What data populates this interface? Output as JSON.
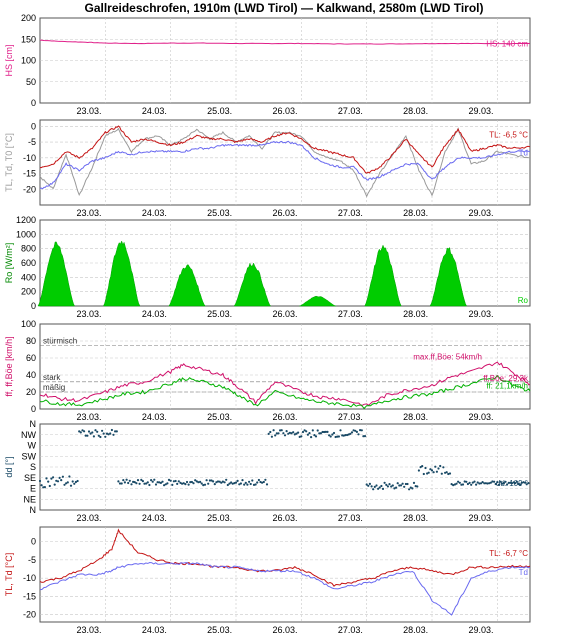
{
  "title": "Gallreideschrofen, 1910m (LWD Tirol) — Kalkwand, 2580m (LWD Tirol)",
  "x_ticks": [
    "23.03.",
    "24.03.",
    "25.03.",
    "26.03.",
    "27.03.",
    "28.03.",
    "29.03."
  ],
  "colors": {
    "hs": "#e0208a",
    "tl": "#c41414",
    "td": "#6a6af0",
    "t0": "#9a9a9a",
    "ro": "#00cc00",
    "ff": "#00b000",
    "fboe": "#d0106a",
    "dd": "#1a4a66",
    "grid": "#c8c8c8",
    "panel_bg": "#ffffff"
  },
  "chart_data": [
    {
      "id": "hs",
      "type": "line",
      "ylabel": "HS [cm]",
      "ylim": [
        0,
        200
      ],
      "y_ticks": [
        0,
        50,
        100,
        150,
        200
      ],
      "series": [
        {
          "name": "HS",
          "color_key": "hs",
          "x": [
            0,
            0.3,
            0.7,
            1,
            1.5,
            2,
            2.5,
            3,
            3.5,
            4,
            4.5,
            5,
            5.5,
            6,
            6.5,
            7,
            7.5
          ],
          "y": [
            148,
            145,
            143,
            141,
            140,
            141,
            141,
            140,
            140,
            140,
            139,
            139,
            139,
            140,
            140,
            140,
            140
          ]
        }
      ],
      "annotations": [
        {
          "text": "HS: 140 cm",
          "color_key": "hs"
        }
      ]
    },
    {
      "id": "temp1910",
      "type": "line",
      "ylabel": "TL, Td, T0 [°C]",
      "ylim": [
        -25,
        2
      ],
      "y_ticks": [
        0,
        -5,
        -10,
        -15,
        -20
      ],
      "series": [
        {
          "name": "T0",
          "color_key": "t0",
          "x": [
            0,
            0.2,
            0.4,
            0.6,
            0.8,
            1,
            1.2,
            1.4,
            1.6,
            1.8,
            2,
            2.2,
            2.4,
            2.6,
            2.8,
            3,
            3.2,
            3.4,
            3.6,
            3.8,
            4,
            4.2,
            4.4,
            4.6,
            4.8,
            5,
            5.2,
            5.4,
            5.6,
            5.8,
            6,
            6.2,
            6.4,
            6.6,
            6.8,
            7,
            7.2,
            7.5
          ],
          "y": [
            -16,
            -20,
            -9,
            -22,
            -13,
            -3,
            -1,
            -8,
            -4,
            -3,
            -6,
            -4,
            -1,
            -4,
            -2,
            -5,
            -3,
            -7,
            -2,
            -2,
            -3,
            -8,
            -10,
            -11,
            -14,
            -22,
            -15,
            -9,
            -3,
            -14,
            -22,
            -8,
            -1,
            -12,
            -11,
            -8,
            -9,
            -10
          ]
        },
        {
          "name": "TL",
          "color_key": "tl",
          "x": [
            0,
            0.2,
            0.4,
            0.6,
            0.8,
            1,
            1.2,
            1.4,
            1.6,
            1.8,
            2,
            2.2,
            2.4,
            2.6,
            2.8,
            3,
            3.2,
            3.4,
            3.6,
            3.8,
            4,
            4.2,
            4.4,
            4.6,
            4.8,
            5,
            5.2,
            5.4,
            5.6,
            5.8,
            6,
            6.2,
            6.4,
            6.6,
            6.8,
            7,
            7.2,
            7.5
          ],
          "y": [
            -13,
            -12,
            -8,
            -10,
            -7,
            -2,
            0,
            -5,
            -4,
            -5,
            -6,
            -5,
            -3,
            -4,
            -4,
            -5,
            -4,
            -5,
            -3,
            -2,
            -4,
            -7,
            -8,
            -9,
            -10,
            -15,
            -13,
            -9,
            -4,
            -9,
            -13,
            -6,
            -1,
            -8,
            -7,
            -6,
            -7,
            -6.5
          ]
        },
        {
          "name": "Td",
          "color_key": "td",
          "x": [
            0,
            0.2,
            0.4,
            0.6,
            0.8,
            1,
            1.2,
            1.4,
            1.6,
            1.8,
            2,
            2.2,
            2.4,
            2.6,
            2.8,
            3,
            3.2,
            3.4,
            3.6,
            3.8,
            4,
            4.2,
            4.4,
            4.6,
            4.8,
            5,
            5.2,
            5.4,
            5.6,
            5.8,
            6,
            6.2,
            6.4,
            6.6,
            6.8,
            7,
            7.2,
            7.5
          ],
          "y": [
            -20,
            -18,
            -12,
            -14,
            -11,
            -10,
            -8,
            -9,
            -8,
            -8,
            -8,
            -8,
            -7,
            -7,
            -6,
            -6,
            -6,
            -6,
            -5,
            -5,
            -6,
            -10,
            -12,
            -13,
            -13,
            -17,
            -16,
            -14,
            -12,
            -12,
            -17,
            -13,
            -10,
            -10,
            -10,
            -9,
            -8,
            -8
          ]
        }
      ],
      "annotations": [
        {
          "text": "TL: -6,5 °C",
          "color_key": "tl"
        },
        {
          "text": "Td",
          "color_key": "td"
        }
      ]
    },
    {
      "id": "ro",
      "type": "area",
      "ylabel": "Ro [W/m²]",
      "ylim": [
        0,
        1200
      ],
      "y_ticks": [
        0,
        200,
        400,
        600,
        800,
        1000,
        1200
      ],
      "peaks": [
        {
          "day": 0.25,
          "value": 900
        },
        {
          "day": 1.25,
          "value": 950
        },
        {
          "day": 2.25,
          "value": 590
        },
        {
          "day": 3.25,
          "value": 620
        },
        {
          "day": 4.25,
          "value": 140
        },
        {
          "day": 5.25,
          "value": 870
        },
        {
          "day": 6.25,
          "value": 830
        }
      ],
      "annotations": [
        {
          "text": "Ro",
          "color_key": "ro"
        }
      ]
    },
    {
      "id": "wind",
      "type": "line",
      "ylabel": "ff, ff,Böe [km/h]",
      "ylim": [
        0,
        100
      ],
      "y_ticks": [
        0,
        20,
        40,
        60,
        80,
        100
      ],
      "levels": [
        {
          "text": "stürmisch",
          "value": 75
        },
        {
          "text": "stark",
          "value": 32
        },
        {
          "text": "mäßig",
          "value": 20
        }
      ],
      "series": [
        {
          "name": "ff,Böe",
          "color_key": "fboe",
          "x": [
            0,
            0.3,
            0.6,
            1,
            1.3,
            1.6,
            2,
            2.2,
            2.5,
            2.8,
            3,
            3.3,
            3.6,
            4,
            4.3,
            4.6,
            5,
            5.3,
            5.6,
            6,
            6.3,
            6.6,
            7,
            7.3,
            7.5
          ],
          "y": [
            18,
            12,
            10,
            20,
            28,
            32,
            44,
            52,
            46,
            40,
            28,
            8,
            32,
            20,
            14,
            12,
            4,
            16,
            22,
            28,
            38,
            44,
            55,
            40,
            29
          ]
        },
        {
          "name": "ff",
          "color_key": "ff",
          "x": [
            0,
            0.3,
            0.6,
            1,
            1.3,
            1.6,
            2,
            2.2,
            2.5,
            2.8,
            3,
            3.3,
            3.6,
            4,
            4.3,
            4.6,
            5,
            5.3,
            5.6,
            6,
            6.3,
            6.6,
            7,
            7.3,
            7.5
          ],
          "y": [
            10,
            6,
            5,
            12,
            18,
            20,
            30,
            36,
            32,
            26,
            18,
            4,
            20,
            12,
            8,
            6,
            2,
            10,
            14,
            18,
            24,
            30,
            38,
            26,
            21
          ]
        }
      ],
      "annotations": [
        {
          "text": "max.ff,Böe: 54km/h",
          "color_key": "fboe"
        },
        {
          "text": "ff,Böe: 29,3k",
          "color_key": "fboe"
        },
        {
          "text": "ff: 21,1km/h",
          "color_key": "ff"
        }
      ]
    },
    {
      "id": "dir",
      "type": "scatter",
      "ylabel": "dd [°]",
      "ylim": [
        0,
        360
      ],
      "y_ticks": [
        {
          "label": "N",
          "value": 360
        },
        {
          "label": "NW",
          "value": 315
        },
        {
          "label": "W",
          "value": 270
        },
        {
          "label": "SW",
          "value": 225
        },
        {
          "label": "S",
          "value": 180
        },
        {
          "label": "SE",
          "value": 135
        },
        {
          "label": "E",
          "value": 90
        },
        {
          "label": "NE",
          "value": 45
        },
        {
          "label": "N",
          "value": 0
        }
      ],
      "segments": [
        {
          "x0": 0,
          "x1": 0.6,
          "y": 120,
          "spread": 25
        },
        {
          "x0": 0.6,
          "x1": 1.2,
          "y": 320,
          "spread": 15
        },
        {
          "x0": 1.2,
          "x1": 3.5,
          "y": 115,
          "spread": 12
        },
        {
          "x0": 3.5,
          "x1": 5.0,
          "y": 320,
          "spread": 15
        },
        {
          "x0": 5.0,
          "x1": 5.8,
          "y": 100,
          "spread": 15
        },
        {
          "x0": 5.8,
          "x1": 6.3,
          "y": 165,
          "spread": 20
        },
        {
          "x0": 6.3,
          "x1": 7.5,
          "y": 112,
          "spread": 8
        }
      ],
      "annotations": [
        {
          "text": "dd: 109 °",
          "color_key": "dd"
        }
      ]
    },
    {
      "id": "temp2580",
      "type": "line",
      "ylabel": "TL, Td [°C]",
      "ylim": [
        -22,
        4
      ],
      "y_ticks": [
        0,
        -5,
        -10,
        -15,
        -20
      ],
      "series": [
        {
          "name": "TL",
          "color_key": "tl",
          "x": [
            0,
            0.3,
            0.6,
            0.9,
            1.1,
            1.2,
            1.5,
            1.8,
            2.1,
            2.4,
            2.7,
            3,
            3.3,
            3.6,
            3.9,
            4.2,
            4.5,
            4.8,
            5.1,
            5.4,
            5.7,
            6,
            6.3,
            6.6,
            6.9,
            7.2,
            7.5
          ],
          "y": [
            -11,
            -10,
            -8,
            -5,
            -2,
            3,
            -3,
            -5,
            -6,
            -6,
            -7,
            -7,
            -8,
            -8,
            -7,
            -9,
            -12,
            -11,
            -10,
            -8,
            -7,
            -8,
            -9,
            -7,
            -7,
            -6.8,
            -6.7
          ]
        },
        {
          "name": "Td",
          "color_key": "td",
          "x": [
            0,
            0.3,
            0.6,
            0.9,
            1.1,
            1.2,
            1.5,
            1.8,
            2.1,
            2.4,
            2.7,
            3,
            3.3,
            3.6,
            3.9,
            4.2,
            4.5,
            4.8,
            5.1,
            5.4,
            5.7,
            6,
            6.3,
            6.6,
            6.9,
            7.2,
            7.5
          ],
          "y": [
            -13,
            -11,
            -9,
            -9,
            -8,
            -7,
            -6,
            -6,
            -6,
            -6,
            -7,
            -7,
            -8,
            -8,
            -8,
            -10,
            -13,
            -12,
            -11,
            -9,
            -8,
            -16,
            -20,
            -10,
            -8,
            -7,
            -7
          ]
        }
      ],
      "annotations": [
        {
          "text": "TL: -6,7 °C",
          "color_key": "tl"
        },
        {
          "text": "Td",
          "color_key": "td"
        }
      ]
    }
  ]
}
